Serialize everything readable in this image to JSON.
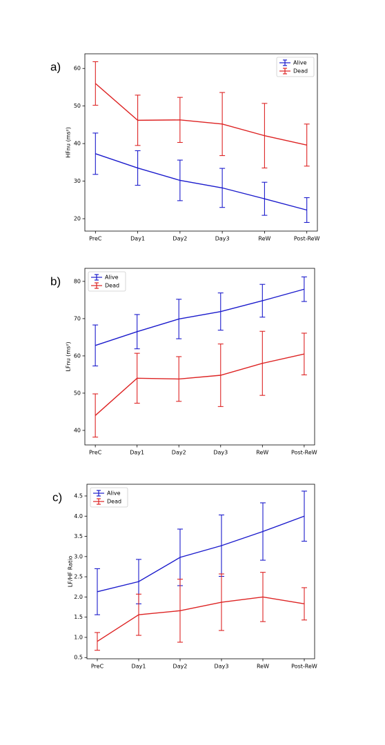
{
  "chart_data": [
    {
      "type": "line",
      "panel_label": "a)",
      "ylabel": "HFnu (ms²)",
      "categories": [
        "PreC",
        "Day1",
        "Day2",
        "Day3",
        "ReW",
        "Post-ReW"
      ],
      "series": [
        {
          "name": "Alive",
          "color": "#1a1acc",
          "values": [
            37.3,
            33.5,
            30.2,
            28.2,
            25.3,
            22.3
          ],
          "errors": [
            5.5,
            4.6,
            5.4,
            5.2,
            4.4,
            3.3
          ]
        },
        {
          "name": "Dead",
          "color": "#dd2222",
          "values": [
            56.0,
            46.2,
            46.3,
            45.2,
            42.1,
            39.6
          ],
          "errors": [
            5.8,
            6.7,
            6.0,
            8.4,
            8.6,
            5.6
          ]
        }
      ],
      "ylim": [
        16.7,
        63.9
      ],
      "yticks": [
        20,
        30,
        40,
        50,
        60
      ],
      "legend": "upper right"
    },
    {
      "type": "line",
      "panel_label": "b)",
      "ylabel": "LFnu (ms²)",
      "categories": [
        "PreC",
        "Day1",
        "Day2",
        "Day3",
        "ReW",
        "Post-ReW"
      ],
      "series": [
        {
          "name": "Alive",
          "color": "#1a1acc",
          "values": [
            62.8,
            66.5,
            69.9,
            71.9,
            74.8,
            77.9
          ],
          "errors": [
            5.5,
            4.6,
            5.3,
            5.0,
            4.4,
            3.3
          ]
        },
        {
          "name": "Dead",
          "color": "#dd2222",
          "values": [
            44.0,
            54.0,
            53.8,
            54.8,
            58.0,
            60.5
          ],
          "errors": [
            5.8,
            6.7,
            6.0,
            8.4,
            8.6,
            5.6
          ]
        }
      ],
      "ylim": [
        36.1,
        83.5
      ],
      "yticks": [
        40,
        50,
        60,
        70,
        80
      ],
      "legend": "upper left"
    },
    {
      "type": "line",
      "panel_label": "c)",
      "ylabel": "LF/HF Ratio",
      "categories": [
        "PreC",
        "Day1",
        "Day2",
        "Day3",
        "ReW",
        "Post-ReW"
      ],
      "series": [
        {
          "name": "Alive",
          "color": "#1a1acc",
          "values": [
            2.13,
            2.38,
            2.98,
            3.27,
            3.62,
            4.0
          ],
          "errors": [
            0.57,
            0.55,
            0.7,
            0.76,
            0.71,
            0.62
          ]
        },
        {
          "name": "Dead",
          "color": "#dd2222",
          "values": [
            0.9,
            1.56,
            1.66,
            1.87,
            2.0,
            1.83
          ],
          "errors": [
            0.22,
            0.51,
            0.78,
            0.7,
            0.61,
            0.4
          ]
        }
      ],
      "ylim": [
        0.47,
        4.79
      ],
      "yticks": [
        0.5,
        {
          "value": 1,
          "label": "1.0"
        },
        1.5,
        {
          "value": 2,
          "label": "2.0"
        },
        2.5,
        {
          "value": 3,
          "label": "3.0"
        },
        3.5,
        {
          "value": 4,
          "label": "4.0"
        },
        4.5
      ],
      "legend": "upper left"
    }
  ]
}
